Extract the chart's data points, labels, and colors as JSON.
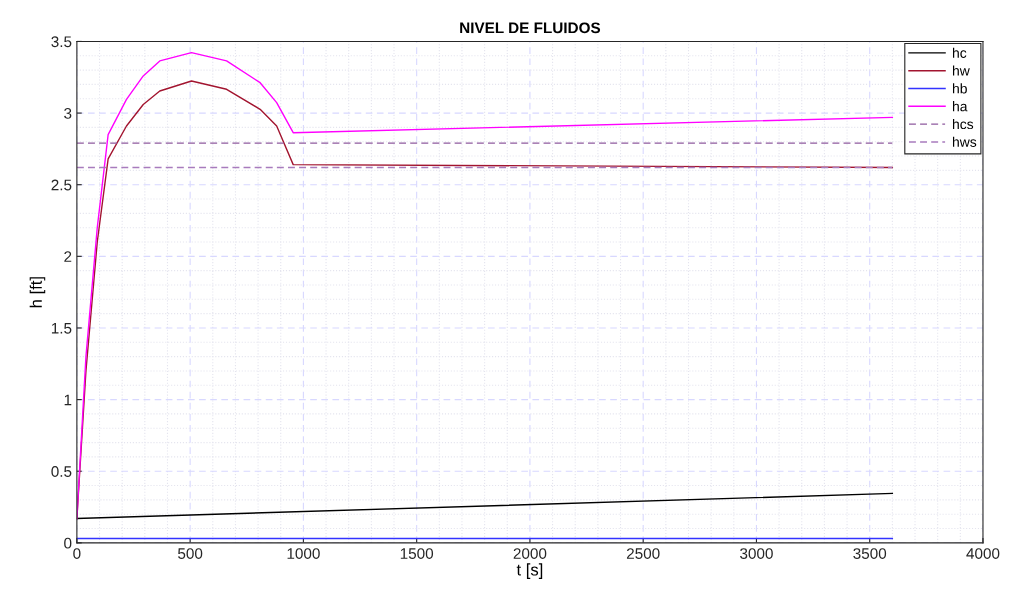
{
  "chart_data": {
    "type": "line",
    "title": "NIVEL DE FLUIDOS",
    "xlabel": "t [s]",
    "ylabel": "h [ft]",
    "xlim": [
      0,
      4000
    ],
    "ylim": [
      0,
      3.5
    ],
    "xticks": [
      0,
      500,
      1000,
      1500,
      2000,
      2500,
      3000,
      3500,
      4000
    ],
    "yticks": [
      0,
      0.5,
      1,
      1.5,
      2,
      2.5,
      3,
      3.5
    ],
    "grid": true,
    "legend": "top right",
    "marker": "none",
    "series": [
      {
        "name": "hc",
        "color": "#000000",
        "x": [
          0,
          3600
        ],
        "values": [
          0.17,
          0.345
        ]
      },
      {
        "name": "hw",
        "color": "#a2142f",
        "x": [
          0,
          40,
          90,
          138,
          219,
          293,
          366,
          506,
          661,
          809,
          882,
          955,
          3600
        ],
        "values": [
          0.17,
          1.2,
          2.1,
          2.68,
          2.91,
          3.06,
          3.154,
          3.224,
          3.166,
          3.026,
          2.91,
          2.64,
          2.62
        ]
      },
      {
        "name": "hb",
        "color": "#3333ff",
        "x": [
          0,
          3600
        ],
        "values": [
          0.03,
          0.03
        ]
      },
      {
        "name": "ha",
        "color": "#ff00ff",
        "x": [
          0,
          40,
          90,
          138,
          219,
          293,
          366,
          506,
          661,
          809,
          882,
          955,
          3600
        ],
        "values": [
          0.17,
          1.3,
          2.2,
          2.85,
          3.096,
          3.259,
          3.364,
          3.422,
          3.364,
          3.212,
          3.073,
          2.863,
          2.97
        ]
      },
      {
        "name": "hcs",
        "color": "#8e5a9e",
        "line_style": "dashed",
        "x": [
          0,
          3600
        ],
        "values": [
          2.79,
          2.79
        ]
      },
      {
        "name": "hws",
        "color": "#a87bbd",
        "line_style": "dashed",
        "x": [
          0,
          3600
        ],
        "values": [
          2.62,
          2.62
        ]
      }
    ]
  }
}
